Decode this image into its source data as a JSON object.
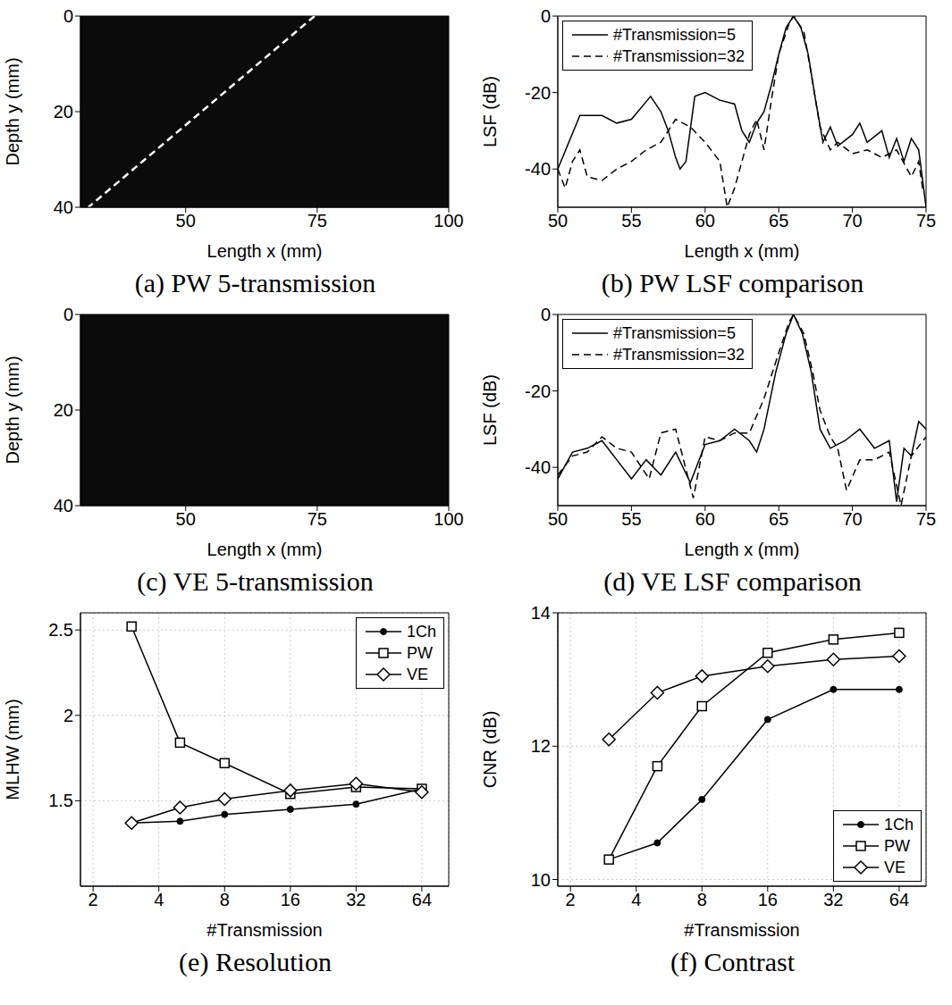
{
  "chart_data": [
    {
      "type": "image",
      "title": "(a) PW 5-transmission",
      "x_label": "Length x (mm)",
      "y_label": "Depth y (mm)",
      "xlim": [
        30,
        100
      ],
      "xticks": [
        50,
        75,
        100
      ],
      "ylim": [
        0,
        40
      ],
      "yticks": [
        0,
        20,
        40
      ],
      "grid": false,
      "series": [
        {
          "color": "#ffffff",
          "line_style": "dashed",
          "x": [
            74.5,
            31.5
          ],
          "values": [
            0,
            40
          ]
        }
      ]
    },
    {
      "type": "line",
      "title": "(b) PW LSF comparison",
      "x_label": "Length x (mm)",
      "y_label": "LSF (dB)",
      "xlim": [
        50,
        75
      ],
      "xticks": [
        50,
        55,
        60,
        65,
        70,
        75
      ],
      "ylim": [
        -50,
        0
      ],
      "yticks": [
        -40,
        -20,
        0
      ],
      "grid": false,
      "legend": "upper left",
      "series": [
        {
          "name": "#Transmission=5",
          "color": "#000000",
          "line_style": "solid",
          "x": [
            50,
            51.5,
            52,
            53,
            54,
            55,
            56.3,
            57,
            57.5,
            58,
            58.3,
            58.7,
            59.3,
            60,
            61,
            62,
            62.5,
            63,
            63.5,
            64,
            64.5,
            65,
            65.5,
            66,
            66.5,
            67,
            67.5,
            68,
            68.5,
            69,
            70,
            70.5,
            71,
            72,
            72.5,
            73,
            73.5,
            74,
            74.5,
            75
          ],
          "values": [
            -40,
            -26,
            -26,
            -26,
            -28,
            -27,
            -21,
            -25,
            -30,
            -37,
            -40,
            -38,
            -21,
            -20,
            -22,
            -23,
            -30,
            -33,
            -28,
            -25,
            -18,
            -10,
            -3,
            0,
            -3,
            -10,
            -22,
            -33,
            -29,
            -34,
            -31,
            -28,
            -33,
            -30,
            -37,
            -32,
            -38,
            -32,
            -35,
            -50
          ]
        },
        {
          "name": "#Transmission=32",
          "color": "#000000",
          "line_style": "dashed",
          "x": [
            50,
            50.5,
            51,
            51.5,
            52,
            53,
            54,
            55,
            56,
            57,
            57.5,
            58,
            59,
            60,
            61,
            61.5,
            62,
            63,
            63.5,
            64,
            64.5,
            65,
            65.7,
            66,
            66.7,
            67.2,
            67.8,
            68.5,
            69,
            70,
            71,
            72,
            73,
            74,
            74.5,
            74.8
          ],
          "values": [
            -40,
            -45,
            -38,
            -35,
            -42,
            -43,
            -40,
            -38,
            -35,
            -33,
            -30,
            -27,
            -29,
            -33,
            -38,
            -50,
            -45,
            -31,
            -27,
            -35,
            -22,
            -10,
            -2,
            0,
            -4,
            -15,
            -29,
            -35,
            -33,
            -36,
            -35,
            -37,
            -35,
            -42,
            -38,
            -46
          ]
        }
      ]
    },
    {
      "type": "image",
      "title": "(c) VE 5-transmission",
      "x_label": "Length x (mm)",
      "y_label": "Depth y (mm)",
      "xlim": [
        30,
        100
      ],
      "xticks": [
        50,
        75,
        100
      ],
      "ylim": [
        0,
        40
      ],
      "yticks": [
        0,
        20,
        40
      ],
      "grid": false,
      "series": []
    },
    {
      "type": "line",
      "title": "(d) VE LSF comparison",
      "x_label": "Length x (mm)",
      "y_label": "LSF (dB)",
      "xlim": [
        50,
        75
      ],
      "xticks": [
        50,
        55,
        60,
        65,
        70,
        75
      ],
      "ylim": [
        -50,
        0
      ],
      "yticks": [
        -40,
        -20,
        0
      ],
      "grid": false,
      "legend": "upper left",
      "series": [
        {
          "name": "#Transmission=5",
          "color": "#000000",
          "line_style": "solid",
          "x": [
            50,
            51,
            52,
            53,
            54,
            55,
            56,
            57,
            58,
            59,
            60,
            61,
            62,
            63,
            63.5,
            64,
            64.8,
            65.5,
            66,
            66.6,
            67.2,
            67.8,
            68.5,
            69.5,
            70.5,
            71.5,
            72.5,
            73,
            73.5,
            74,
            74.5,
            75
          ],
          "values": [
            -43,
            -36,
            -35,
            -33,
            -38,
            -43,
            -38,
            -42,
            -36,
            -44,
            -34,
            -33,
            -30,
            -33,
            -36,
            -30,
            -15,
            -5,
            0,
            -5,
            -15,
            -30,
            -35,
            -33,
            -30,
            -35,
            -33,
            -49,
            -35,
            -37,
            -28,
            -30
          ]
        },
        {
          "name": "#Transmission=32",
          "color": "#000000",
          "line_style": "dashed",
          "x": [
            50,
            51,
            52,
            53,
            54,
            55,
            56.2,
            57,
            58,
            59.2,
            60,
            61,
            62,
            63,
            64,
            65,
            65.7,
            66,
            66.7,
            67.3,
            67.8,
            68.5,
            69,
            69.6,
            70.5,
            71.5,
            72.5,
            73.3,
            74,
            75
          ],
          "values": [
            -42,
            -37,
            -36,
            -32,
            -35,
            -36,
            -43,
            -31,
            -30,
            -48,
            -32,
            -33,
            -31,
            -31,
            -22,
            -10,
            -2,
            0,
            -5,
            -15,
            -25,
            -32,
            -35,
            -46,
            -38,
            -38,
            -36,
            -50,
            -37,
            -32
          ]
        }
      ]
    },
    {
      "type": "line",
      "title": "(e) Resolution",
      "x_label": "#Transmission",
      "y_label": "MLHW (mm)",
      "log": "x",
      "xlim": [
        1.75,
        85
      ],
      "xticks": [
        2,
        4,
        8,
        16,
        32,
        64
      ],
      "ylim": [
        1,
        2.6
      ],
      "yticks": [
        1.5,
        2,
        2.5
      ],
      "grid": true,
      "legend": "upper right",
      "series": [
        {
          "name": "1Ch",
          "color": "#000000",
          "line_style": "solid",
          "marker": "circle",
          "x": [
            3,
            5,
            8,
            16,
            32,
            64
          ],
          "values": [
            1.37,
            1.38,
            1.42,
            1.45,
            1.48,
            1.57
          ]
        },
        {
          "name": "PW",
          "color": "#000000",
          "line_style": "solid",
          "marker": "square",
          "x": [
            3,
            5,
            8,
            16,
            32,
            64
          ],
          "values": [
            2.52,
            1.84,
            1.72,
            1.54,
            1.58,
            1.57
          ]
        },
        {
          "name": "VE",
          "color": "#000000",
          "line_style": "solid",
          "marker": "diamond",
          "x": [
            3,
            5,
            8,
            16,
            32,
            64
          ],
          "values": [
            1.37,
            1.46,
            1.51,
            1.56,
            1.6,
            1.55
          ]
        }
      ]
    },
    {
      "type": "line",
      "title": "(f) Contrast",
      "x_label": "#Transmission",
      "y_label": "CNR (dB)",
      "log": "x",
      "xlim": [
        1.75,
        85
      ],
      "xticks": [
        2,
        4,
        8,
        16,
        32,
        64
      ],
      "ylim": [
        9.9,
        14
      ],
      "yticks": [
        10,
        12,
        14
      ],
      "grid": true,
      "legend": "lower right",
      "series": [
        {
          "name": "1Ch",
          "color": "#000000",
          "line_style": "solid",
          "marker": "circle",
          "x": [
            3,
            5,
            8,
            16,
            32,
            64
          ],
          "values": [
            10.3,
            10.55,
            11.2,
            12.4,
            12.85,
            12.85
          ]
        },
        {
          "name": "PW",
          "color": "#000000",
          "line_style": "solid",
          "marker": "square",
          "x": [
            3,
            5,
            8,
            16,
            32,
            64
          ],
          "values": [
            10.3,
            11.7,
            12.6,
            13.4,
            13.6,
            13.7
          ]
        },
        {
          "name": "VE",
          "color": "#000000",
          "line_style": "solid",
          "marker": "diamond",
          "x": [
            3,
            5,
            8,
            16,
            32,
            64
          ],
          "values": [
            12.1,
            12.8,
            13.05,
            13.2,
            13.3,
            13.35
          ]
        }
      ]
    }
  ]
}
